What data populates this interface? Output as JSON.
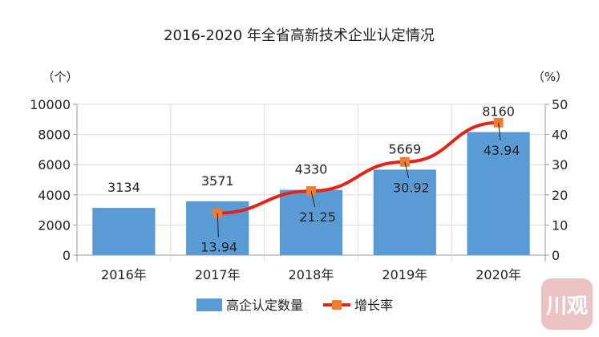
{
  "chart_data": {
    "type": "bar+line",
    "title": "2016-2020 年全省高新技术企业认定情况",
    "categories": [
      "2016年",
      "2017年",
      "2018年",
      "2019年",
      "2020年"
    ],
    "series": [
      {
        "name": "高企认定数量",
        "type": "bar",
        "axis": "left",
        "values": [
          3134,
          3571,
          4330,
          5669,
          8160
        ],
        "labels": [
          "3134",
          "3571",
          "4330",
          "5669",
          "8160"
        ],
        "color": "#5b9bd5"
      },
      {
        "name": "增长率",
        "type": "line",
        "axis": "right",
        "values": [
          null,
          13.94,
          21.25,
          30.92,
          43.94
        ],
        "labels": [
          "",
          "13.94",
          "21.25",
          "30.92",
          "43.94"
        ],
        "color": "#e0261a",
        "marker_color": "#ed7d31"
      }
    ],
    "ylabel_left": "（个）",
    "ylabel_right": "（%）",
    "ylim_left": [
      0,
      10000
    ],
    "yticks_left": [
      "0",
      "2000",
      "4000",
      "6000",
      "8000",
      "10000"
    ],
    "ylim_right": [
      0,
      50
    ],
    "yticks_right": [
      "0",
      "10",
      "20",
      "30",
      "40",
      "50"
    ],
    "grid": true,
    "legend": "bottom"
  },
  "watermark": "川观"
}
